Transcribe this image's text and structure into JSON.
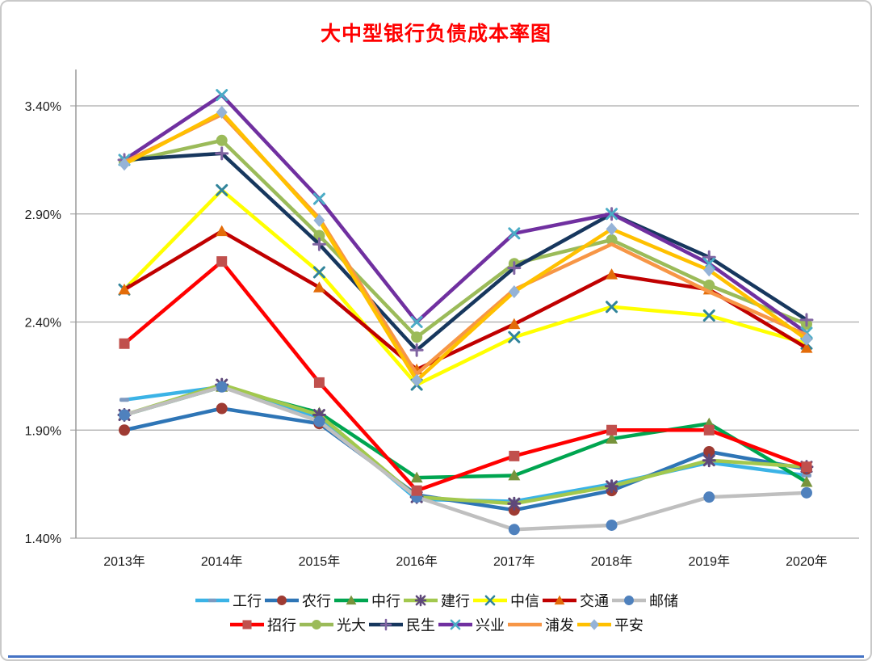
{
  "page": {
    "title": "大中型银行负债成本率图",
    "title_color": "#FF0000"
  },
  "chart_data": {
    "type": "line",
    "title": "大中型银行负债成本率图",
    "categories": [
      "2013年",
      "2014年",
      "2015年",
      "2016年",
      "2017年",
      "2018年",
      "2019年",
      "2020年"
    ],
    "ylabel": "",
    "xlabel": "",
    "ylim": [
      1.4,
      3.4
    ],
    "y_ticks": [
      {
        "label": "3.40%",
        "value": 3.4
      },
      {
        "label": "2.90%",
        "value": 2.9
      },
      {
        "label": "2.40%",
        "value": 2.4
      },
      {
        "label": "1.90%",
        "value": 1.9
      },
      {
        "label": "1.40%",
        "value": 1.4
      }
    ],
    "grid": true,
    "legend_position": "bottom",
    "legend_rows": [
      7,
      6
    ],
    "axis_color": "#9a9a9a",
    "grid_color": "#aaaaaa",
    "series": [
      {
        "id": "icbc",
        "name": "工行",
        "color": "#3BB3E6",
        "marker": "dash",
        "marker_color": "#7E99C0",
        "values": [
          2.04,
          2.1,
          1.96,
          1.58,
          1.57,
          1.65,
          1.75,
          1.69
        ]
      },
      {
        "id": "abc",
        "name": "农行",
        "color": "#2E75B6",
        "marker": "circle",
        "marker_color": "#9E3B33",
        "values": [
          1.9,
          2.0,
          1.93,
          1.6,
          1.53,
          1.62,
          1.8,
          1.72
        ]
      },
      {
        "id": "boc",
        "name": "中行",
        "color": "#00A550",
        "marker": "triangle",
        "marker_color": "#77933C",
        "values": [
          1.97,
          2.1,
          1.98,
          1.68,
          1.69,
          1.86,
          1.93,
          1.66
        ]
      },
      {
        "id": "ccb",
        "name": "建行",
        "color": "#A2C84E",
        "marker": "asterisk",
        "marker_color": "#5F497A",
        "values": [
          1.97,
          2.11,
          1.97,
          1.59,
          1.56,
          1.64,
          1.76,
          1.73
        ]
      },
      {
        "id": "citic",
        "name": "中信",
        "color": "#FFFF00",
        "marker": "x",
        "marker_color": "#31849B",
        "values": [
          2.55,
          3.01,
          2.63,
          2.11,
          2.33,
          2.47,
          2.43,
          2.3
        ]
      },
      {
        "id": "bocom",
        "name": "交通",
        "color": "#C00000",
        "marker": "triangle",
        "marker_color": "#E36C09",
        "values": [
          2.55,
          2.82,
          2.56,
          2.18,
          2.39,
          2.62,
          2.55,
          2.28
        ]
      },
      {
        "id": "psbc",
        "name": "邮储",
        "color": "#BFBFBF",
        "marker": "circle",
        "marker_color": "#4F81BD",
        "values": [
          1.97,
          2.1,
          1.94,
          1.59,
          1.44,
          1.46,
          1.59,
          1.61
        ]
      },
      {
        "id": "cmb",
        "name": "招行",
        "color": "#FF0000",
        "marker": "square",
        "marker_color": "#C0504D",
        "values": [
          2.3,
          2.68,
          2.12,
          1.62,
          1.78,
          1.9,
          1.9,
          1.73
        ]
      },
      {
        "id": "ceb",
        "name": "光大",
        "color": "#9BBB59",
        "marker": "circle",
        "marker_color": "#9BBB59",
        "values": [
          3.14,
          3.24,
          2.8,
          2.33,
          2.67,
          2.78,
          2.57,
          2.39
        ]
      },
      {
        "id": "cmbc",
        "name": "民生",
        "color": "#17375E",
        "marker": "plus",
        "marker_color": "#8064A2",
        "values": [
          3.15,
          3.18,
          2.76,
          2.27,
          2.65,
          2.9,
          2.7,
          2.41
        ]
      },
      {
        "id": "cib",
        "name": "兴业",
        "color": "#7030A0",
        "marker": "x",
        "marker_color": "#4BACC6",
        "values": [
          3.15,
          3.45,
          2.97,
          2.4,
          2.81,
          2.9,
          2.67,
          2.35
        ]
      },
      {
        "id": "spdb",
        "name": "浦发",
        "color": "#F79646",
        "marker": "none",
        "marker_color": "#F79646",
        "values": [
          3.14,
          3.36,
          2.88,
          2.16,
          2.55,
          2.76,
          2.54,
          2.34
        ]
      },
      {
        "id": "pingan",
        "name": "平安",
        "color": "#FFC000",
        "marker": "diamond",
        "marker_color": "#95B3D7",
        "values": [
          3.13,
          3.37,
          2.87,
          2.13,
          2.54,
          2.83,
          2.64,
          2.32
        ]
      }
    ]
  }
}
